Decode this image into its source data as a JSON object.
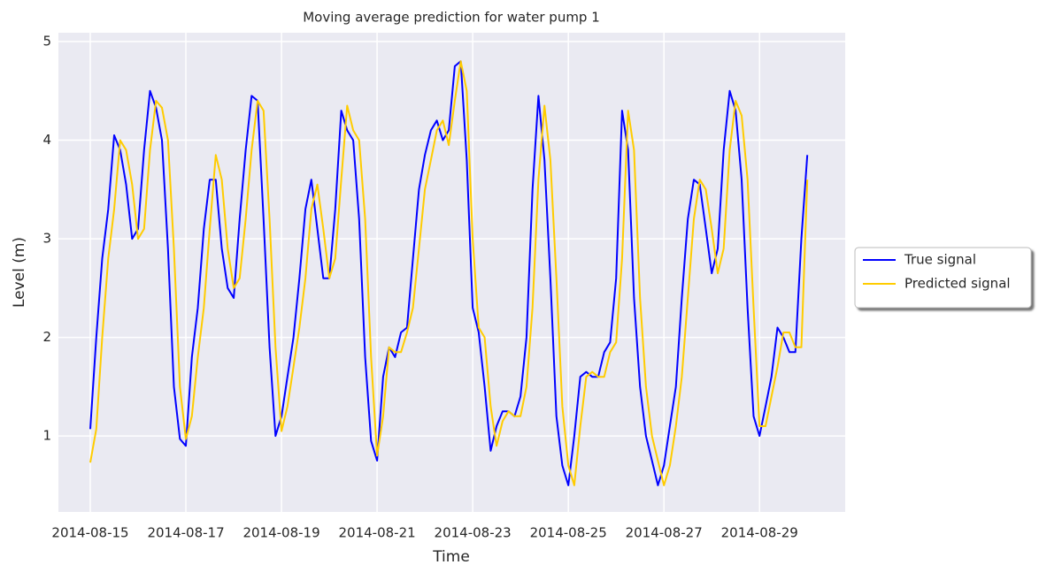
{
  "chart_data": {
    "type": "line",
    "title": "Moving average prediction for water pump 1",
    "xlabel": "Time",
    "ylabel": "Level (m)",
    "x": [
      "2014-08-15 00:00",
      "2014-08-15 03:00",
      "2014-08-15 06:00",
      "2014-08-15 09:00",
      "2014-08-15 12:00",
      "2014-08-15 15:00",
      "2014-08-15 18:00",
      "2014-08-15 21:00",
      "2014-08-16 00:00",
      "2014-08-16 03:00",
      "2014-08-16 06:00",
      "2014-08-16 09:00",
      "2014-08-16 12:00",
      "2014-08-16 15:00",
      "2014-08-16 18:00",
      "2014-08-16 21:00",
      "2014-08-17 00:00",
      "2014-08-17 03:00",
      "2014-08-17 06:00",
      "2014-08-17 09:00",
      "2014-08-17 12:00",
      "2014-08-17 15:00",
      "2014-08-17 18:00",
      "2014-08-17 21:00",
      "2014-08-18 00:00",
      "2014-08-18 03:00",
      "2014-08-18 06:00",
      "2014-08-18 09:00",
      "2014-08-18 12:00",
      "2014-08-18 15:00",
      "2014-08-18 18:00",
      "2014-08-18 21:00",
      "2014-08-19 00:00",
      "2014-08-19 03:00",
      "2014-08-19 06:00",
      "2014-08-19 09:00",
      "2014-08-19 12:00",
      "2014-08-19 15:00",
      "2014-08-19 18:00",
      "2014-08-19 21:00",
      "2014-08-20 00:00",
      "2014-08-20 03:00",
      "2014-08-20 06:00",
      "2014-08-20 09:00",
      "2014-08-20 12:00",
      "2014-08-20 15:00",
      "2014-08-20 18:00",
      "2014-08-20 21:00",
      "2014-08-21 00:00",
      "2014-08-21 03:00",
      "2014-08-21 06:00",
      "2014-08-21 09:00",
      "2014-08-21 12:00",
      "2014-08-21 15:00",
      "2014-08-21 18:00",
      "2014-08-21 21:00",
      "2014-08-22 00:00",
      "2014-08-22 03:00",
      "2014-08-22 06:00",
      "2014-08-22 09:00",
      "2014-08-22 12:00",
      "2014-08-22 15:00",
      "2014-08-22 18:00",
      "2014-08-22 21:00",
      "2014-08-23 00:00",
      "2014-08-23 03:00",
      "2014-08-23 06:00",
      "2014-08-23 09:00",
      "2014-08-23 12:00",
      "2014-08-23 15:00",
      "2014-08-23 18:00",
      "2014-08-23 21:00",
      "2014-08-24 00:00",
      "2014-08-24 03:00",
      "2014-08-24 06:00",
      "2014-08-24 09:00",
      "2014-08-24 12:00",
      "2014-08-24 15:00",
      "2014-08-24 18:00",
      "2014-08-24 21:00",
      "2014-08-25 00:00",
      "2014-08-25 03:00",
      "2014-08-25 06:00",
      "2014-08-25 09:00",
      "2014-08-25 12:00",
      "2014-08-25 15:00",
      "2014-08-25 18:00",
      "2014-08-25 21:00",
      "2014-08-26 00:00",
      "2014-08-26 03:00",
      "2014-08-26 06:00",
      "2014-08-26 09:00",
      "2014-08-26 12:00",
      "2014-08-26 15:00",
      "2014-08-26 18:00",
      "2014-08-26 21:00",
      "2014-08-27 00:00",
      "2014-08-27 03:00",
      "2014-08-27 06:00",
      "2014-08-27 09:00",
      "2014-08-27 12:00",
      "2014-08-27 15:00",
      "2014-08-27 18:00",
      "2014-08-27 21:00",
      "2014-08-28 00:00",
      "2014-08-28 03:00",
      "2014-08-28 06:00",
      "2014-08-28 09:00",
      "2014-08-28 12:00",
      "2014-08-28 15:00",
      "2014-08-28 18:00",
      "2014-08-28 21:00",
      "2014-08-29 00:00",
      "2014-08-29 03:00",
      "2014-08-29 06:00",
      "2014-08-29 09:00",
      "2014-08-29 12:00",
      "2014-08-29 15:00",
      "2014-08-29 18:00",
      "2014-08-29 21:00",
      "2014-08-30 00:00"
    ],
    "series": [
      {
        "name": "True signal",
        "color": "#0000ff",
        "values": [
          1.07,
          2.0,
          2.8,
          3.3,
          4.05,
          3.9,
          3.55,
          3.0,
          3.1,
          3.9,
          4.5,
          4.33,
          4.0,
          2.9,
          1.5,
          0.97,
          0.9,
          1.8,
          2.3,
          3.1,
          3.6,
          3.6,
          2.9,
          2.5,
          2.4,
          3.2,
          3.9,
          4.45,
          4.4,
          3.2,
          1.9,
          1.0,
          1.2,
          1.6,
          2.0,
          2.6,
          3.3,
          3.6,
          3.1,
          2.6,
          2.6,
          3.3,
          4.3,
          4.1,
          4.0,
          3.2,
          1.8,
          0.95,
          0.75,
          1.6,
          1.9,
          1.8,
          2.05,
          2.1,
          2.8,
          3.5,
          3.85,
          4.1,
          4.2,
          4.0,
          4.1,
          4.75,
          4.8,
          3.8,
          2.3,
          2.05,
          1.5,
          0.85,
          1.1,
          1.25,
          1.25,
          1.2,
          1.4,
          2.0,
          3.5,
          4.45,
          3.8,
          2.6,
          1.2,
          0.7,
          0.5,
          1.0,
          1.6,
          1.65,
          1.6,
          1.6,
          1.85,
          1.95,
          2.6,
          4.3,
          3.9,
          2.4,
          1.5,
          1.0,
          0.75,
          0.5,
          0.7,
          1.1,
          1.5,
          2.4,
          3.2,
          3.6,
          3.55,
          3.1,
          2.65,
          2.9,
          3.9,
          4.5,
          4.3,
          3.6,
          2.3,
          1.2,
          1.0,
          1.3,
          1.6,
          2.1,
          2.0,
          1.85,
          1.85,
          3.0,
          3.85
        ]
      },
      {
        "name": "Predicted signal",
        "color": "#ffcc00",
        "values": [
          0.73,
          1.07,
          2.0,
          2.8,
          3.3,
          4.0,
          3.9,
          3.55,
          3.0,
          3.1,
          3.9,
          4.4,
          4.33,
          4.0,
          2.9,
          1.5,
          0.97,
          1.2,
          1.8,
          2.3,
          3.1,
          3.85,
          3.6,
          2.9,
          2.5,
          2.6,
          3.2,
          3.9,
          4.4,
          4.3,
          3.2,
          1.9,
          1.05,
          1.3,
          1.7,
          2.1,
          2.6,
          3.3,
          3.55,
          3.1,
          2.6,
          2.8,
          3.6,
          4.35,
          4.1,
          4.0,
          3.2,
          1.8,
          0.8,
          1.2,
          1.9,
          1.85,
          1.85,
          2.05,
          2.3,
          2.9,
          3.5,
          3.8,
          4.1,
          4.2,
          3.95,
          4.4,
          4.8,
          4.5,
          3.0,
          2.1,
          2.0,
          1.3,
          0.9,
          1.15,
          1.25,
          1.2,
          1.2,
          1.5,
          2.3,
          3.6,
          4.35,
          3.8,
          2.6,
          1.3,
          0.7,
          0.5,
          1.1,
          1.6,
          1.65,
          1.6,
          1.6,
          1.85,
          1.95,
          2.8,
          4.3,
          3.9,
          2.4,
          1.5,
          1.0,
          0.75,
          0.5,
          0.7,
          1.1,
          1.6,
          2.4,
          3.2,
          3.6,
          3.5,
          3.1,
          2.65,
          2.9,
          3.9,
          4.4,
          4.25,
          3.6,
          2.3,
          1.1,
          1.1,
          1.4,
          1.7,
          2.05,
          2.05,
          1.9,
          1.9,
          3.6
        ]
      }
    ],
    "xlim": [
      "2014-08-14 08:00",
      "2014-08-30 19:00"
    ],
    "xticks": [
      "2014-08-15",
      "2014-08-17",
      "2014-08-19",
      "2014-08-21",
      "2014-08-23",
      "2014-08-25",
      "2014-08-27",
      "2014-08-29"
    ],
    "ylim": [
      0.23,
      5.09
    ],
    "yticks": [
      1,
      2,
      3,
      4,
      5
    ],
    "grid": true,
    "legend": "right"
  }
}
